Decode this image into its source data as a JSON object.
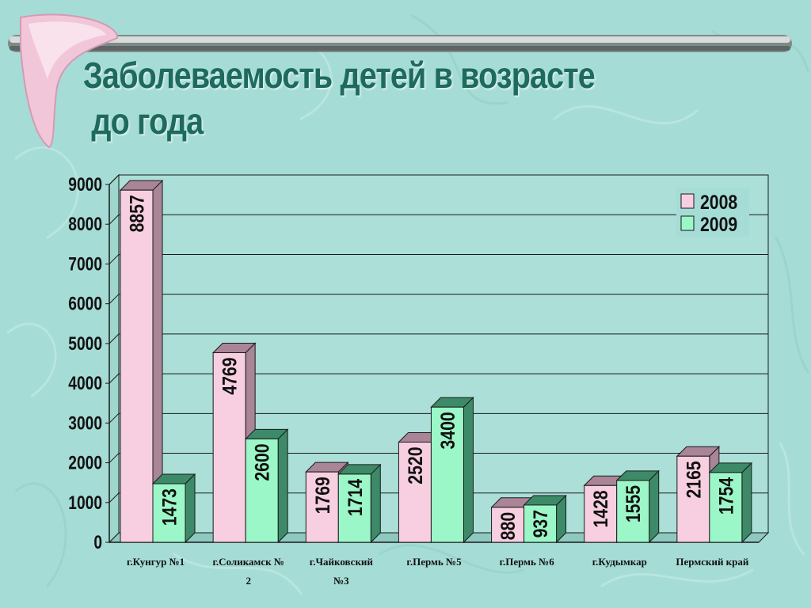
{
  "slide": {
    "title_line1": "Заболеваемость детей в возрасте",
    "title_line2": "до года"
  },
  "chart_data": {
    "type": "bar",
    "style": "3d-clustered",
    "categories": [
      "г.Кунгур №1",
      "г.Соликамск № 2",
      "г.Чайковский №3",
      "г.Пермь №5",
      "г.Пермь №6",
      "г.Кудымкар",
      "Пермский край"
    ],
    "series": [
      {
        "name": "2008",
        "values": [
          8857,
          4769,
          1769,
          2520,
          880,
          1428,
          2165
        ],
        "color": "#f7cfe0",
        "side_color": "#a98597"
      },
      {
        "name": "2009",
        "values": [
          1473,
          2600,
          1714,
          3400,
          937,
          1555,
          1754
        ],
        "color": "#9cf7c8",
        "side_color": "#3d8a68"
      }
    ],
    "ylim": [
      0,
      9000
    ],
    "yticks": [
      0,
      1000,
      2000,
      3000,
      4000,
      5000,
      6000,
      7000,
      8000,
      9000
    ],
    "grid": true,
    "legend_position": "top-right",
    "data_labels": "vertical-inside-bars"
  }
}
